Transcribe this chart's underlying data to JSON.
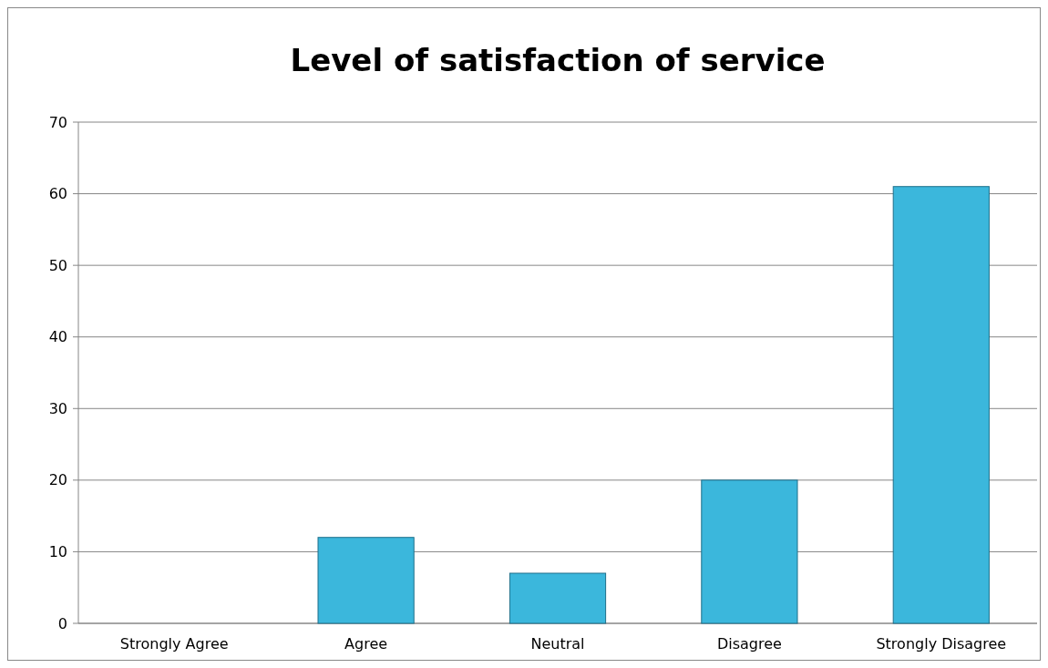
{
  "chart_data": {
    "type": "bar",
    "title": "Level of satisfaction of service",
    "categories": [
      "Strongly Agree",
      "Agree",
      "Neutral",
      "Disagree",
      "Strongly Disagree"
    ],
    "values": [
      0,
      12,
      7,
      20,
      61
    ],
    "color": "#3bb7dc",
    "ylim": [
      0,
      70
    ],
    "yticks": [
      0,
      10,
      20,
      30,
      40,
      50,
      60,
      70
    ],
    "grid": "y"
  }
}
